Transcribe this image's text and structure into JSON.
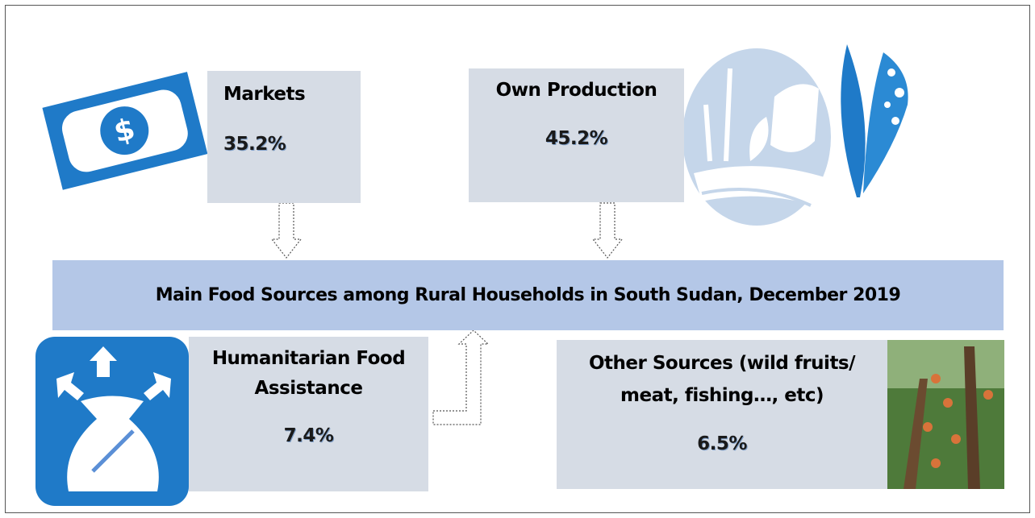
{
  "title": "Main Food Sources among Rural Households in South Sudan, December 2019",
  "sources": [
    {
      "label_lines": [
        "Markets"
      ],
      "share": "35.2%"
    },
    {
      "label_lines": [
        "Own Production"
      ],
      "share": "45.2%"
    },
    {
      "label_lines": [
        "Humanitarian Food",
        "Assistance"
      ],
      "share": "7.4%"
    },
    {
      "label_lines": [
        "Other Sources (wild fruits/",
        "meat, fishing…, etc)"
      ],
      "share": "6.5%"
    }
  ]
}
